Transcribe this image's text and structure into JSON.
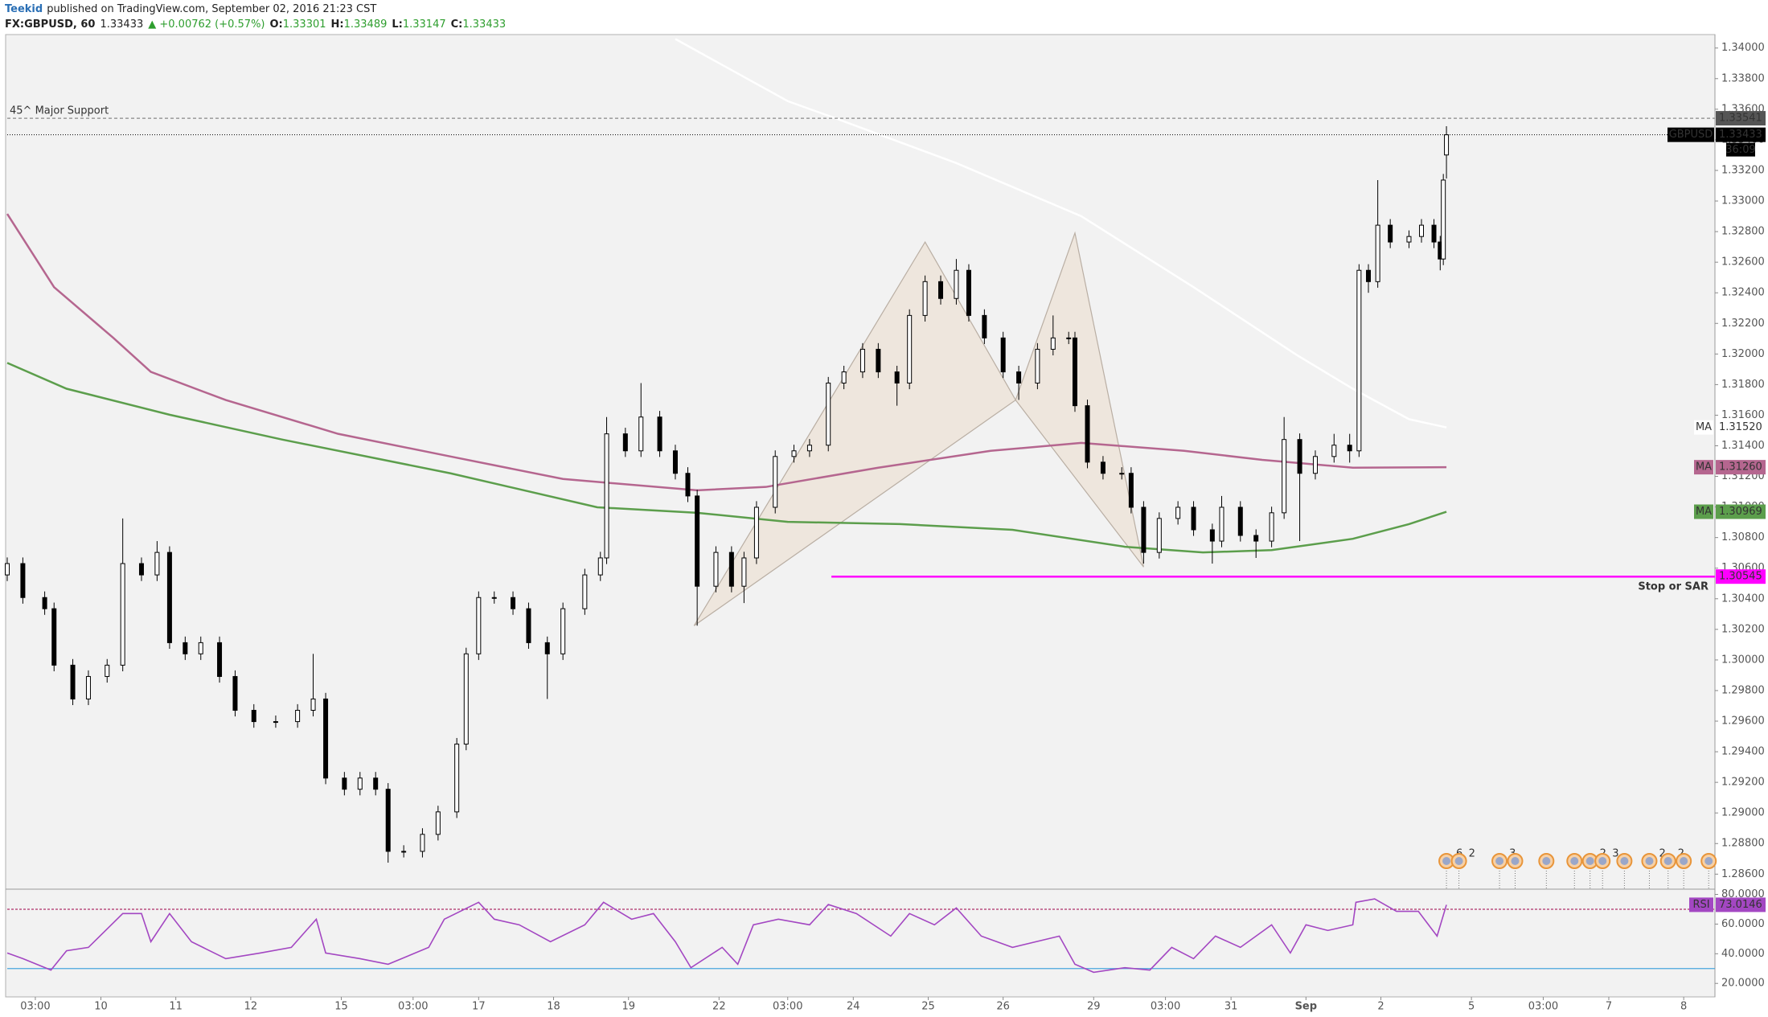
{
  "header": {
    "author": "Teekid",
    "published": "published on TradingView.com, September 02, 2016 21:23 CST",
    "symbol": "FX:GBPUSD, 60",
    "change": "▲ +0.00762 (+0.57%)",
    "ohlc_labels": [
      "O:",
      "H:",
      "L:",
      "C:"
    ]
  },
  "chart_data": [
    {
      "type": "candlestick",
      "up_color": "#ffffff",
      "down_color": "#000000",
      "x": [
        0,
        5,
        12,
        15,
        21,
        26,
        32,
        37,
        43,
        48,
        52,
        57,
        62,
        68,
        73,
        79,
        86,
        93,
        98,
        102,
        108,
        113,
        118,
        122,
        127,
        133,
        138,
        144,
        147,
        151,
        156,
        162,
        167,
        173,
        178,
        185,
        190,
        192,
        198,
        203,
        209,
        214,
        218,
        221,
        227,
        232,
        236,
        240,
        246,
        252,
        257,
        263,
        268,
        274,
        279,
        285,
        289,
        294,
        299,
        304,
        308,
        313,
        319,
        324,
        330,
        335,
        340,
        342,
        346,
        351,
        357,
        360,
        364,
        369,
        375,
        380,
        386,
        389,
        395,
        400,
        405,
        409,
        414,
        419,
        425,
        430,
        433,
        436,
        439,
        443,
        449,
        453,
        457,
        459,
        460,
        461
      ],
      "open": [
        1.30556,
        1.3063,
        1.30408,
        1.30335,
        1.29966,
        1.29745,
        1.29892,
        1.29966,
        1.3063,
        1.30556,
        1.30703,
        1.30113,
        1.3004,
        1.30113,
        1.29892,
        1.29671,
        1.29597,
        1.29597,
        1.29671,
        1.29745,
        1.29228,
        1.29155,
        1.29228,
        1.29155,
        1.28749,
        1.28749,
        1.2886,
        1.29007,
        1.2945,
        1.3004,
        1.30408,
        1.30408,
        1.30335,
        1.30113,
        1.3004,
        1.30335,
        1.30556,
        1.30667,
        1.31478,
        1.31367,
        1.31588,
        1.31367,
        1.3122,
        1.31072,
        1.30482,
        1.30703,
        1.30482,
        1.30667,
        1.30998,
        1.3133,
        1.31367,
        1.31404,
        1.3181,
        1.31883,
        1.32031,
        1.31883,
        1.3181,
        1.32252,
        1.32473,
        1.32363,
        1.32547,
        1.32252,
        1.32105,
        1.31883,
        1.3181,
        1.32031,
        1.32105,
        1.32105,
        1.31662,
        1.31293,
        1.3122,
        1.3122,
        1.30998,
        1.30703,
        1.30925,
        1.30998,
        1.30851,
        1.30777,
        1.30998,
        1.30814,
        1.30777,
        1.30962,
        1.31441,
        1.3122,
        1.3133,
        1.31404,
        1.31367,
        1.32547,
        1.32473,
        1.32842,
        1.32732,
        1.32768,
        1.32842,
        1.32732,
        1.32621,
        1.33301
      ],
      "high": [
        1.3067,
        1.3067,
        1.30448,
        1.30375,
        1.30006,
        1.29932,
        1.30006,
        1.30925,
        1.3067,
        1.30777,
        1.30743,
        1.30153,
        1.30153,
        1.30153,
        1.29932,
        1.29711,
        1.29637,
        1.29711,
        1.3004,
        1.29785,
        1.29268,
        1.29268,
        1.29268,
        1.29195,
        1.28789,
        1.289,
        1.29047,
        1.2949,
        1.3008,
        1.30448,
        1.30448,
        1.30448,
        1.30375,
        1.30153,
        1.30375,
        1.30596,
        1.30707,
        1.31588,
        1.31518,
        1.3181,
        1.31628,
        1.31407,
        1.3126,
        1.31112,
        1.30743,
        1.30743,
        1.30707,
        1.31038,
        1.3137,
        1.31407,
        1.31444,
        1.3185,
        1.31923,
        1.32071,
        1.32071,
        1.31923,
        1.32292,
        1.32513,
        1.32513,
        1.32621,
        1.32587,
        1.32292,
        1.32145,
        1.31923,
        1.32071,
        1.32252,
        1.32145,
        1.32145,
        1.31702,
        1.31333,
        1.3126,
        1.3126,
        1.31038,
        1.30965,
        1.31038,
        1.31038,
        1.30891,
        1.31072,
        1.31038,
        1.30854,
        1.31002,
        1.31588,
        1.31481,
        1.3137,
        1.31478,
        1.31478,
        1.32587,
        1.32587,
        1.33137,
        1.32882,
        1.32808,
        1.32882,
        1.32882,
        1.32772,
        1.33177,
        1.33489
      ],
      "low": [
        1.30516,
        1.30368,
        1.30295,
        1.29926,
        1.29705,
        1.29705,
        1.29852,
        1.29926,
        1.30516,
        1.30516,
        1.30073,
        1.3,
        1.3,
        1.29852,
        1.29631,
        1.29557,
        1.29557,
        1.29557,
        1.29631,
        1.29188,
        1.29115,
        1.29115,
        1.29115,
        1.28675,
        1.28709,
        1.28709,
        1.2882,
        1.28967,
        1.2941,
        1.3,
        1.30368,
        1.30295,
        1.30073,
        1.29745,
        1.3,
        1.30295,
        1.30516,
        1.30627,
        1.31327,
        1.31327,
        1.31327,
        1.3118,
        1.31032,
        1.30224,
        1.30442,
        1.30442,
        1.30372,
        1.30627,
        1.30958,
        1.3129,
        1.31327,
        1.31364,
        1.3177,
        1.31843,
        1.31843,
        1.31662,
        1.3177,
        1.32212,
        1.32323,
        1.32323,
        1.32212,
        1.32065,
        1.31843,
        1.317,
        1.3177,
        1.31991,
        1.32065,
        1.31622,
        1.31253,
        1.3118,
        1.3118,
        1.30958,
        1.3063,
        1.30663,
        1.30885,
        1.30811,
        1.3063,
        1.30737,
        1.30774,
        1.30667,
        1.30737,
        1.30922,
        1.30777,
        1.3118,
        1.3129,
        1.3129,
        1.31327,
        1.324,
        1.32433,
        1.32692,
        1.32692,
        1.32728,
        1.32692,
        1.32547,
        1.32581,
        1.33147
      ],
      "close": [
        1.3063,
        1.30408,
        1.30335,
        1.29966,
        1.29745,
        1.29892,
        1.29966,
        1.3063,
        1.30556,
        1.30703,
        1.30113,
        1.3004,
        1.30113,
        1.29892,
        1.29671,
        1.29597,
        1.29597,
        1.29671,
        1.29745,
        1.29228,
        1.29155,
        1.29228,
        1.29155,
        1.28749,
        1.28749,
        1.2886,
        1.29007,
        1.2945,
        1.3004,
        1.30408,
        1.30408,
        1.30335,
        1.30113,
        1.3004,
        1.30335,
        1.30556,
        1.30667,
        1.31478,
        1.31367,
        1.31588,
        1.31367,
        1.3122,
        1.31072,
        1.30482,
        1.30703,
        1.30482,
        1.30667,
        1.30998,
        1.3133,
        1.31367,
        1.31404,
        1.3181,
        1.31883,
        1.32031,
        1.31883,
        1.3181,
        1.32252,
        1.32473,
        1.32363,
        1.32547,
        1.32252,
        1.32105,
        1.31883,
        1.3181,
        1.32031,
        1.32105,
        1.32105,
        1.31662,
        1.31293,
        1.3122,
        1.3122,
        1.30998,
        1.30703,
        1.30925,
        1.30998,
        1.30851,
        1.30777,
        1.30998,
        1.30814,
        1.30777,
        1.30962,
        1.31441,
        1.3122,
        1.3133,
        1.31404,
        1.31367,
        1.32547,
        1.32473,
        1.32842,
        1.32732,
        1.32768,
        1.32842,
        1.32732,
        1.32621,
        1.33137,
        1.33433
      ],
      "ylim": [
        1.28507,
        1.34088
      ],
      "yticks": [
        {
          "value": 1.286,
          "label": "1.28600"
        },
        {
          "value": 1.288,
          "label": "1.28800"
        },
        {
          "value": 1.29,
          "label": "1.29000"
        },
        {
          "value": 1.292,
          "label": "1.29200"
        },
        {
          "value": 1.294,
          "label": "1.29400"
        },
        {
          "value": 1.296,
          "label": "1.29600"
        },
        {
          "value": 1.298,
          "label": "1.29800"
        },
        {
          "value": 1.3,
          "label": "1.30000"
        },
        {
          "value": 1.302,
          "label": "1.30200"
        },
        {
          "value": 1.304,
          "label": "1.30400"
        },
        {
          "value": 1.306,
          "label": "1.30600"
        },
        {
          "value": 1.308,
          "label": "1.30800"
        },
        {
          "value": 1.31,
          "label": "1.31000"
        },
        {
          "value": 1.312,
          "label": "1.31200"
        },
        {
          "value": 1.314,
          "label": "1.31400"
        },
        {
          "value": 1.316,
          "label": "1.31600"
        },
        {
          "value": 1.318,
          "label": "1.31800"
        },
        {
          "value": 1.32,
          "label": "1.32000"
        },
        {
          "value": 1.322,
          "label": "1.32200"
        },
        {
          "value": 1.324,
          "label": "1.32400"
        },
        {
          "value": 1.326,
          "label": "1.32600"
        },
        {
          "value": 1.328,
          "label": "1.32800"
        },
        {
          "value": 1.33,
          "label": "1.33000"
        },
        {
          "value": 1.332,
          "label": "1.33200"
        },
        {
          "value": 1.334,
          "label": "1.33400"
        },
        {
          "value": 1.336,
          "label": "1.33600"
        },
        {
          "value": 1.338,
          "label": "1.33800"
        },
        {
          "value": 1.34,
          "label": "1.34000"
        }
      ],
      "series": [
        {
          "name": "MA",
          "color": "#ffffff",
          "x": [
            214,
            250,
            265,
            304,
            344,
            380,
            413,
            431,
            449,
            461
          ],
          "values": [
            1.34059,
            1.33653,
            1.33543,
            1.33248,
            1.32901,
            1.32437,
            1.31994,
            1.31773,
            1.31574,
            1.3152
          ],
          "value_labels": [
            null,
            null,
            null,
            null,
            null,
            null,
            null,
            null,
            null,
            "1.31520"
          ]
        },
        {
          "name": "MA",
          "color": "#b5668f",
          "x": [
            0,
            15,
            34,
            46,
            70,
            106,
            142,
            178,
            221,
            243,
            279,
            315,
            344,
            377,
            402,
            431,
            461
          ],
          "values": [
            1.32916,
            1.32437,
            1.32105,
            1.31883,
            1.31699,
            1.31478,
            1.3133,
            1.31183,
            1.31109,
            1.31131,
            1.31257,
            1.31367,
            1.31419,
            1.31367,
            1.31308,
            1.31257,
            1.3126
          ],
          "value_labels": [
            null,
            null,
            null,
            null,
            null,
            null,
            null,
            null,
            null,
            null,
            null,
            null,
            null,
            null,
            null,
            null,
            "1.31260"
          ]
        },
        {
          "name": "MA",
          "color": "#5c9e4c",
          "x": [
            0,
            19,
            52,
            88,
            142,
            189,
            221,
            250,
            286,
            322,
            358,
            383,
            405,
            431,
            449,
            461
          ],
          "values": [
            1.31942,
            1.31773,
            1.31603,
            1.31441,
            1.3122,
            1.30998,
            1.30962,
            1.30903,
            1.30888,
            1.30851,
            1.3074,
            1.30703,
            1.30718,
            1.30792,
            1.30888,
            1.30969
          ]
        }
      ],
      "lines": [
        {
          "label": "45^ Major Support",
          "value": 1.33541,
          "color": "#888888",
          "style": "dashed"
        },
        {
          "label": "Stop or SAR",
          "value": 1.30545,
          "color": "#ff00ff",
          "from": 264
        }
      ],
      "price_line": {
        "label": "GBPUSD",
        "countdown": "36:09"
      },
      "pattern": [
        {
          "x": 220,
          "y": 1.30224
        },
        {
          "x": 294,
          "y": 1.32732
        },
        {
          "x": 323,
          "y": 1.31699
        },
        {
          "x": 342,
          "y": 1.32791
        },
        {
          "x": 364,
          "y": 1.30608
        }
      ],
      "events": [
        {
          "x": 461,
          "count": 6
        },
        {
          "x": 465,
          "count": 2
        },
        {
          "x": 478,
          "count": 3
        },
        {
          "x": 483
        },
        {
          "x": 493
        },
        {
          "x": 502
        },
        {
          "x": 507,
          "count": 2
        },
        {
          "x": 511,
          "count": 3
        },
        {
          "x": 518
        },
        {
          "x": 526,
          "count": 2
        },
        {
          "x": 532,
          "count": 2
        },
        {
          "x": 537
        },
        {
          "x": 545
        }
      ]
    },
    {
      "type": "line",
      "series": [
        {
          "name": "RSI",
          "color": "#a347c2",
          "x": [
            0,
            5,
            14,
            19,
            26,
            37,
            43,
            46,
            52,
            59,
            70,
            81,
            91,
            99,
            102,
            113,
            122,
            135,
            140,
            151,
            156,
            164,
            174,
            185,
            191,
            200,
            207,
            214,
            219,
            229,
            234,
            239,
            247,
            257,
            263,
            272,
            283,
            289,
            297,
            304,
            312,
            322,
            337,
            342,
            348,
            358,
            366,
            373,
            380,
            387,
            395,
            405,
            411,
            416,
            423,
            431,
            432,
            438,
            445,
            452,
            458,
            461
          ],
          "values": [
            40.5,
            36.7,
            29.0,
            42.0,
            44.3,
            67.1,
            67.1,
            48.1,
            67.1,
            48.1,
            36.7,
            40.5,
            44.3,
            63.3,
            40.5,
            36.7,
            32.9,
            44.3,
            63.3,
            74.7,
            63.3,
            59.5,
            48.1,
            59.5,
            74.7,
            63.3,
            67.1,
            48.1,
            30.6,
            44.3,
            32.9,
            59.5,
            63.3,
            59.5,
            73.2,
            67.1,
            51.9,
            67.1,
            59.5,
            70.9,
            51.9,
            44.3,
            51.9,
            32.9,
            27.5,
            30.6,
            29.0,
            44.3,
            36.7,
            51.9,
            44.3,
            59.5,
            40.5,
            59.5,
            55.7,
            59.5,
            74.7,
            77.0,
            68.6,
            68.6,
            51.9,
            73.0146
          ]
        }
      ],
      "levels": [
        {
          "value": 70,
          "color": "#b0306a",
          "style": "dashed"
        },
        {
          "value": 30,
          "color": "#49a6dd"
        }
      ],
      "ylim": [
        10.9,
        83
      ],
      "yticks": [
        {
          "value": 20,
          "label": "20.0000"
        },
        {
          "value": 40,
          "label": "40.0000"
        },
        {
          "value": 60,
          "label": "60.0000"
        },
        {
          "value": 80,
          "label": "80.0000"
        }
      ],
      "xlim": [
        0,
        547
      ],
      "xticks": [
        {
          "value": 9,
          "label": "03:00"
        },
        {
          "value": 30,
          "label": "10"
        },
        {
          "value": 54,
          "label": "11"
        },
        {
          "value": 78,
          "label": "12"
        },
        {
          "value": 107,
          "label": "15"
        },
        {
          "value": 130,
          "label": "03:00"
        },
        {
          "value": 151,
          "label": "17"
        },
        {
          "value": 175,
          "label": "18"
        },
        {
          "value": 199,
          "label": "19"
        },
        {
          "value": 228,
          "label": "22"
        },
        {
          "value": 250,
          "label": "03:00"
        },
        {
          "value": 271,
          "label": "24"
        },
        {
          "value": 295,
          "label": "25"
        },
        {
          "value": 319,
          "label": "26"
        },
        {
          "value": 348,
          "label": "29"
        },
        {
          "value": 371,
          "label": "03:00"
        },
        {
          "value": 392,
          "label": "31"
        },
        {
          "value": 416,
          "label": "Sep"
        },
        {
          "value": 440,
          "label": "2"
        },
        {
          "value": 469,
          "label": "5"
        },
        {
          "value": 492,
          "label": "03:00"
        },
        {
          "value": 513,
          "label": "7"
        },
        {
          "value": 537,
          "label": "8"
        }
      ]
    }
  ]
}
